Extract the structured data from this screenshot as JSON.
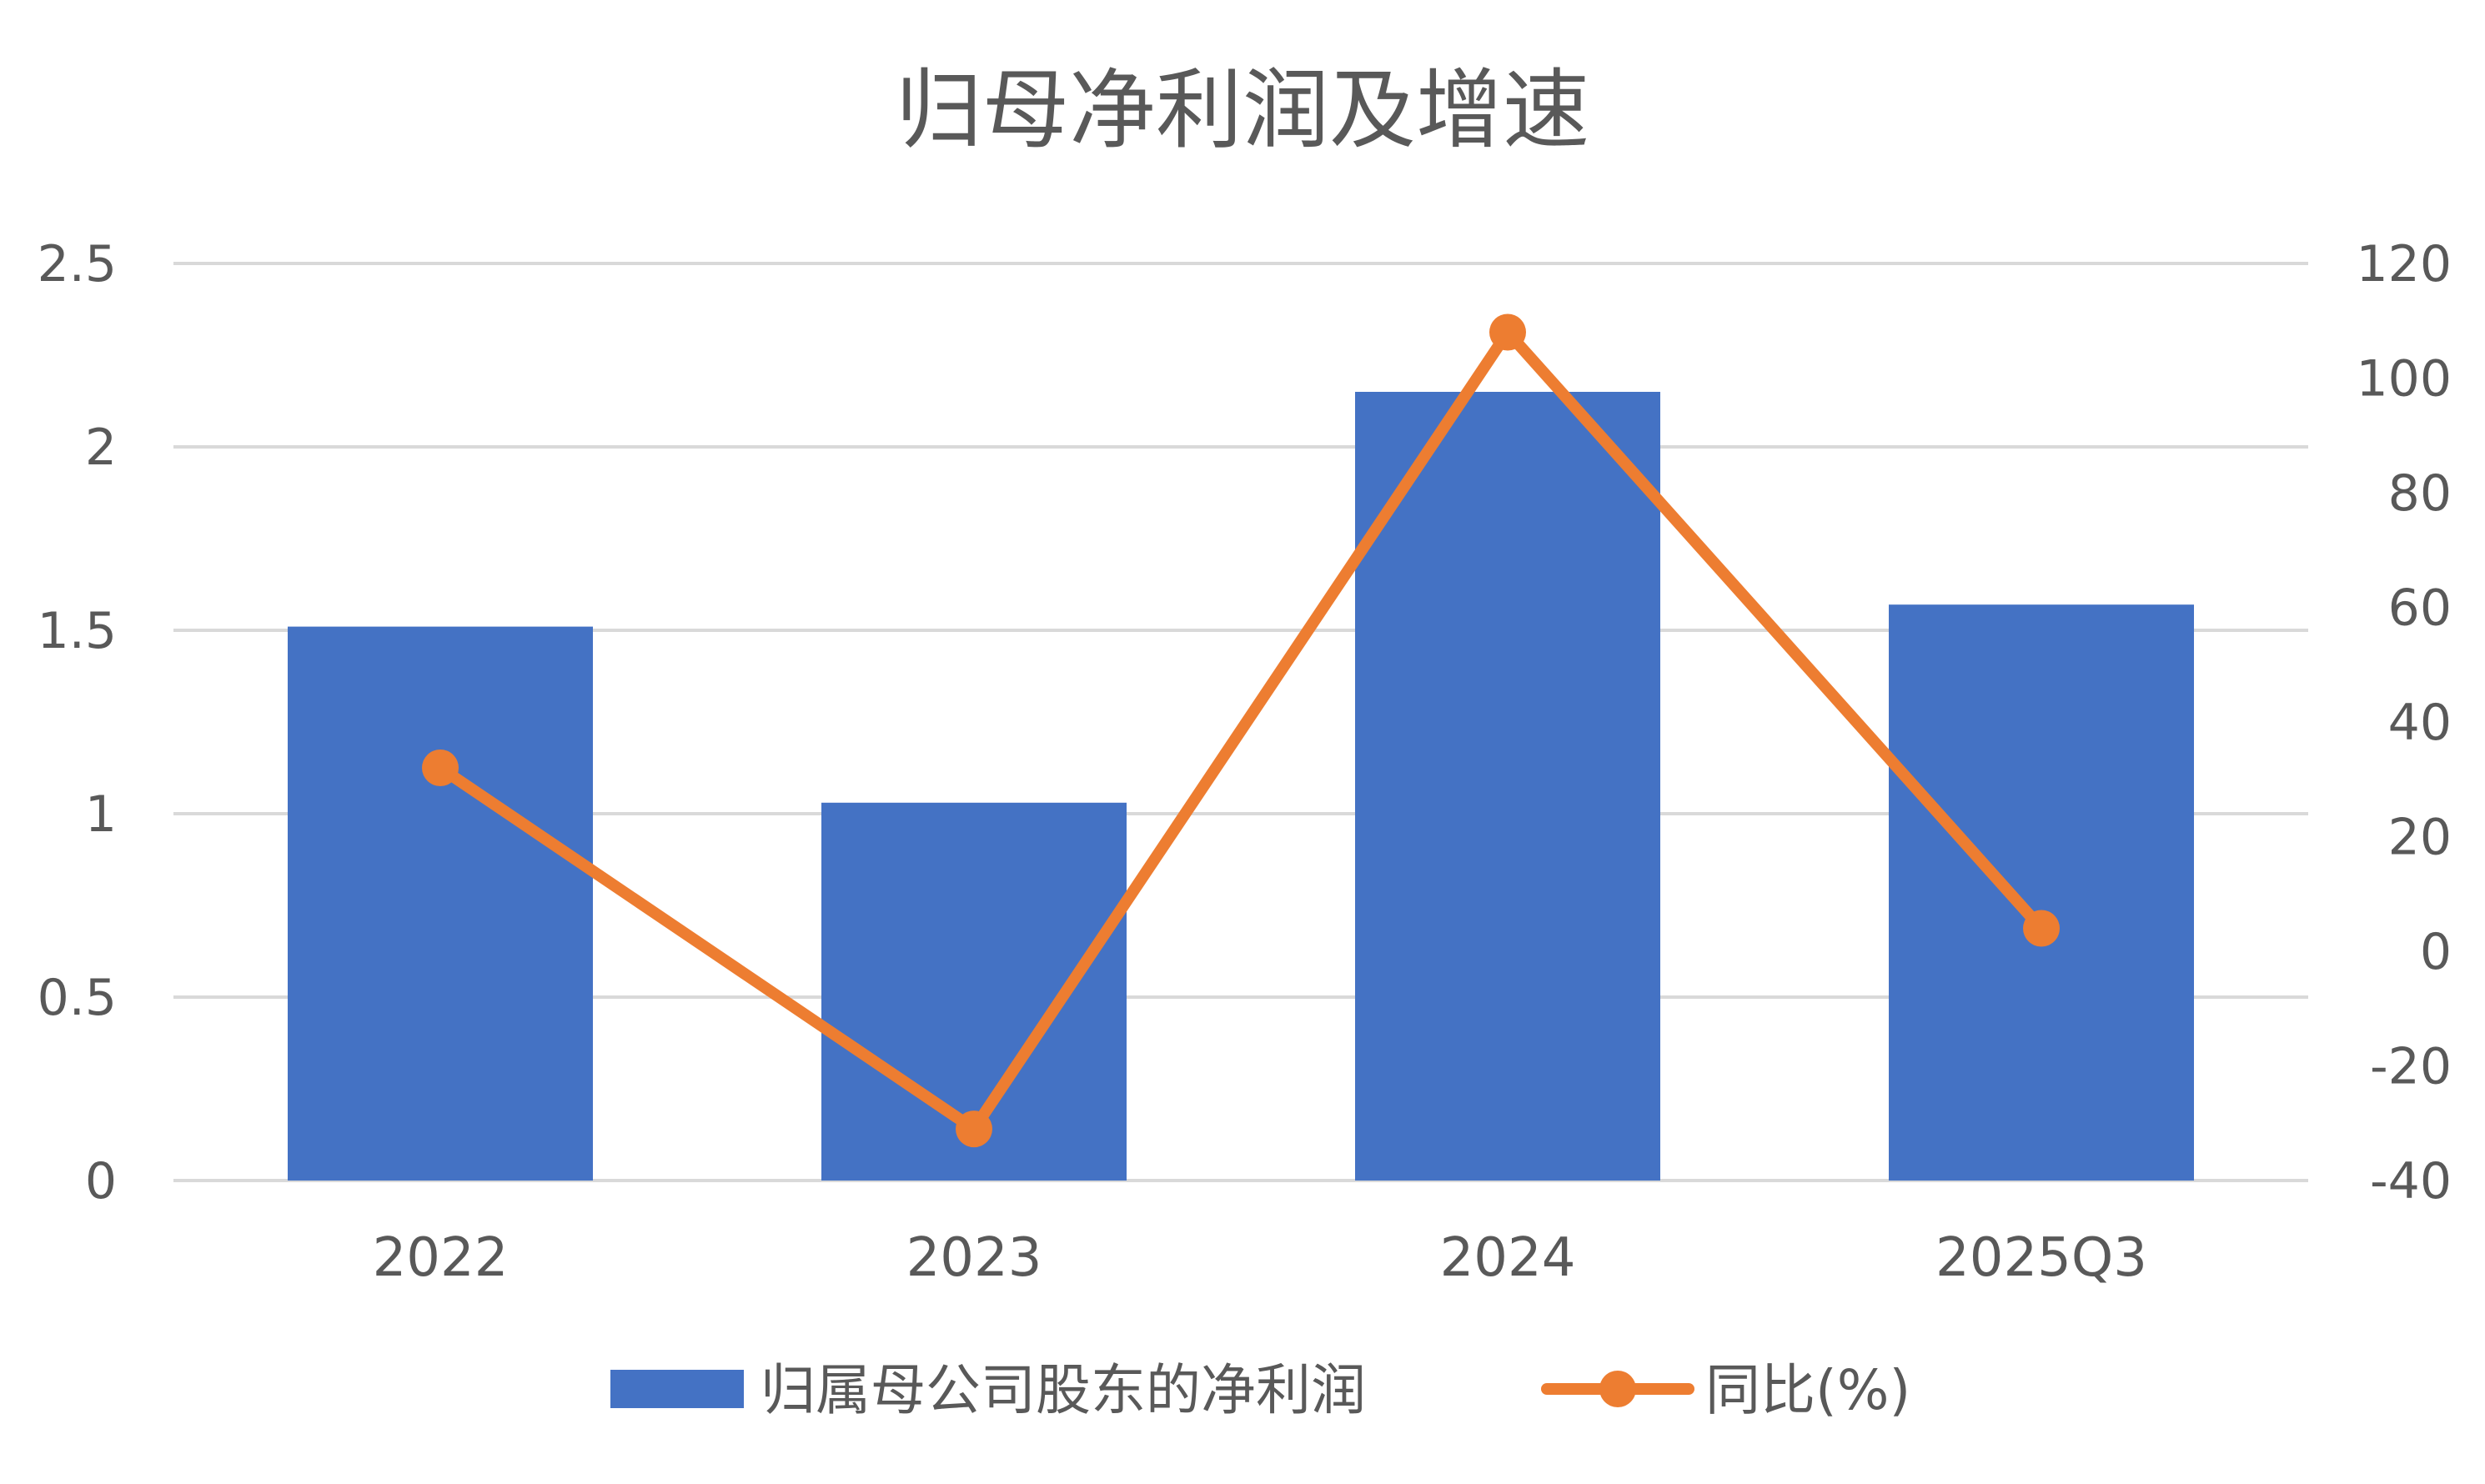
{
  "chart_data": {
    "type": "bar",
    "title": "归母净利润及增速",
    "categories": [
      "2022",
      "2023",
      "2024",
      "2025Q3"
    ],
    "series": [
      {
        "name": "归属母公司股东的净利润",
        "type": "bar",
        "axis": "left",
        "values": [
          1.51,
          1.03,
          2.15,
          1.57
        ]
      },
      {
        "name": "同比(%)",
        "type": "line",
        "axis": "right",
        "values": [
          32,
          -31,
          108,
          4
        ]
      }
    ],
    "left_axis": {
      "min": 0,
      "max": 2.5,
      "ticks": [
        "0",
        "0.5",
        "1",
        "1.5",
        "2",
        "2.5"
      ]
    },
    "right_axis": {
      "min": -40,
      "max": 120,
      "ticks": [
        "-40",
        "-20",
        "0",
        "20",
        "40",
        "60",
        "80",
        "100",
        "120"
      ]
    },
    "grid": true,
    "legend_position": "bottom",
    "colors": {
      "bar": "#4472c4",
      "line": "#ed7d31",
      "grid": "#d9d9d9",
      "text": "#595959"
    }
  }
}
